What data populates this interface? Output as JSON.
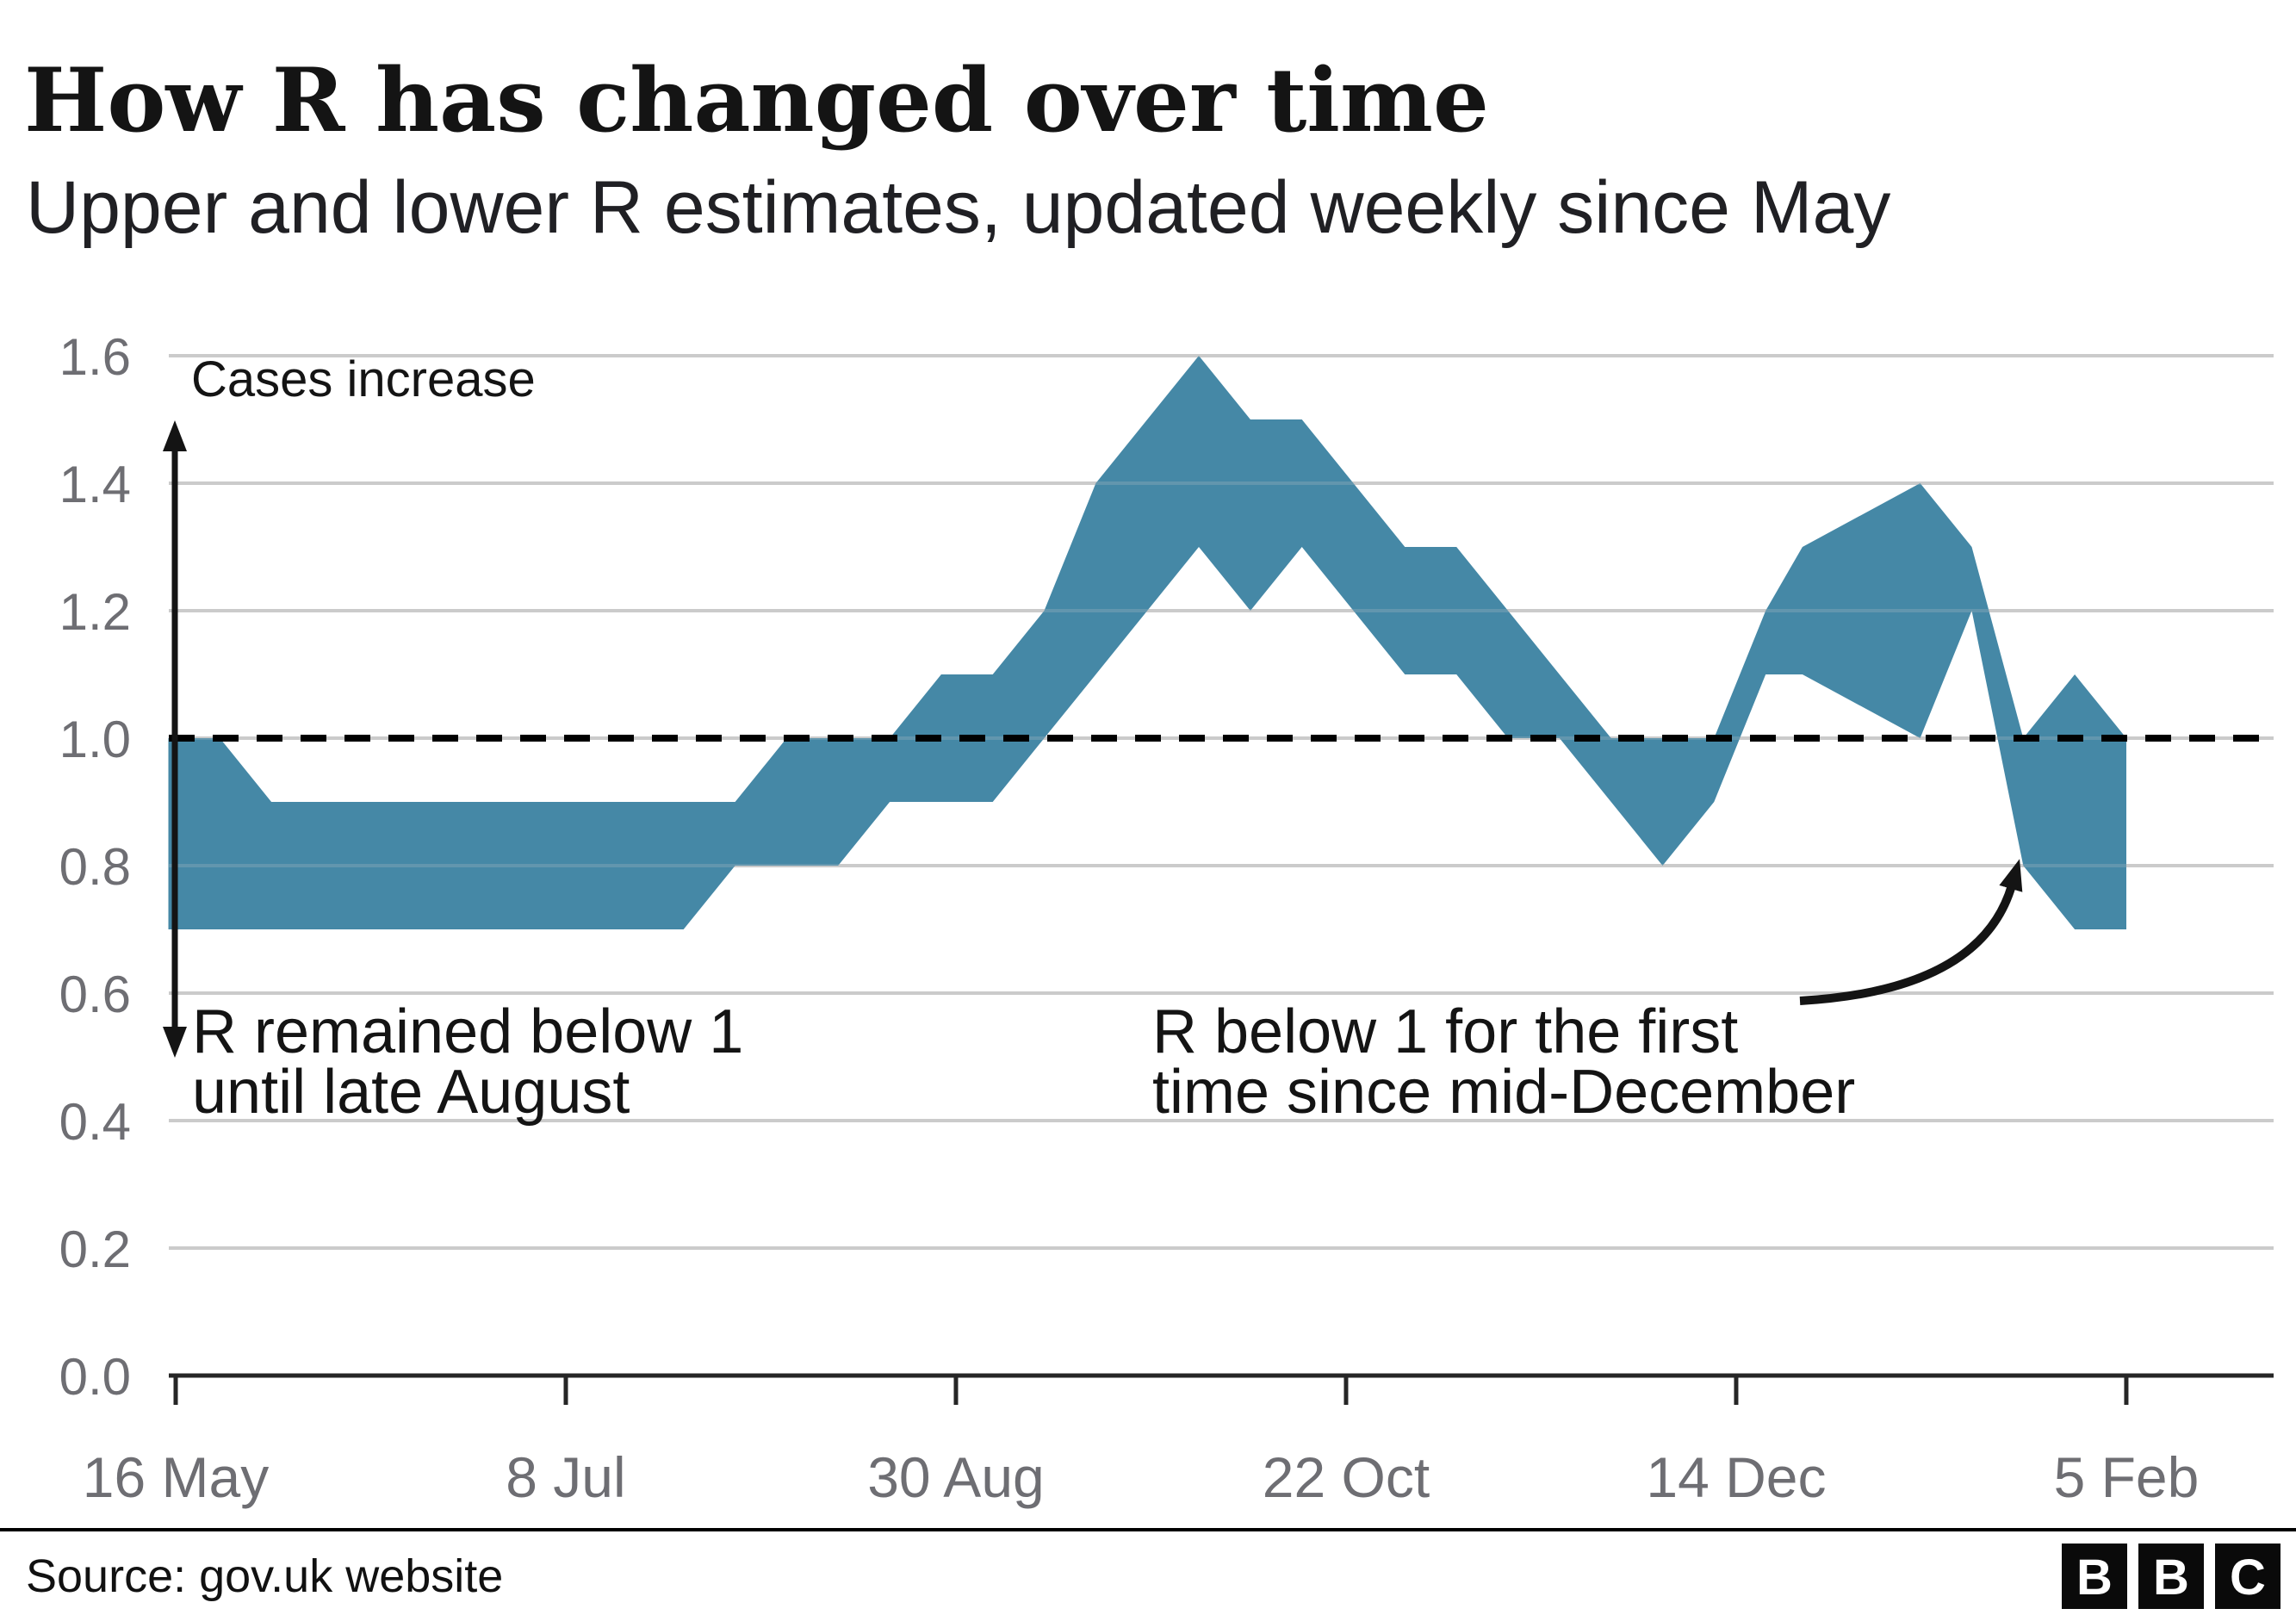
{
  "header": {
    "title": "How R has changed over time",
    "subtitle": "Upper and lower R estimates, updated weekly since May"
  },
  "annotations": {
    "cases_increase": "Cases increase",
    "below1_august_line1": "R remained below 1",
    "below1_august_line2": "until late August",
    "below1_december_line1": "R below 1 for the first",
    "below1_december_line2": "time since mid-December"
  },
  "footer": {
    "source": "Source: gov.uk website",
    "logo_letters": [
      "B",
      "B",
      "C"
    ]
  },
  "colors": {
    "band": "#4588a6",
    "grid": "#cbcbcb",
    "axis": "#262626",
    "muted_text": "#6e6e73",
    "text": "#141414",
    "reference_dash": "#000000"
  },
  "chart_data": {
    "type": "area",
    "band_meaning": "range between lower and upper weekly R estimate",
    "title": "How R has changed over time",
    "subtitle": "Upper and lower R estimates, updated weekly since May",
    "ylim": [
      0.0,
      1.6
    ],
    "y_ticks": [
      0.0,
      0.2,
      0.4,
      0.6,
      0.8,
      1.0,
      1.2,
      1.4,
      1.6
    ],
    "reference_value": 1.0,
    "grid": true,
    "x_ticks": [
      {
        "label": "16 May",
        "day": 0
      },
      {
        "label": "8 Jul",
        "day": 53
      },
      {
        "label": "30 Aug",
        "day": 106
      },
      {
        "label": "22 Oct",
        "day": 159
      },
      {
        "label": "14 Dec",
        "day": 212
      },
      {
        "label": "5 Feb",
        "day": 265
      }
    ],
    "points": [
      {
        "date": "15 May",
        "day": -1,
        "lower": 0.7,
        "upper": 1.0
      },
      {
        "date": "22 May",
        "day": 6,
        "lower": 0.7,
        "upper": 1.0
      },
      {
        "date": "29 May",
        "day": 13,
        "lower": 0.7,
        "upper": 0.9
      },
      {
        "date": "5 Jun",
        "day": 20,
        "lower": 0.7,
        "upper": 0.9
      },
      {
        "date": "12 Jun",
        "day": 27,
        "lower": 0.7,
        "upper": 0.9
      },
      {
        "date": "19 Jun",
        "day": 34,
        "lower": 0.7,
        "upper": 0.9
      },
      {
        "date": "26 Jun",
        "day": 41,
        "lower": 0.7,
        "upper": 0.9
      },
      {
        "date": "3 Jul",
        "day": 48,
        "lower": 0.7,
        "upper": 0.9
      },
      {
        "date": "10 Jul",
        "day": 55,
        "lower": 0.7,
        "upper": 0.9
      },
      {
        "date": "17 Jul",
        "day": 62,
        "lower": 0.7,
        "upper": 0.9
      },
      {
        "date": "24 Jul",
        "day": 69,
        "lower": 0.7,
        "upper": 0.9
      },
      {
        "date": "31 Jul",
        "day": 76,
        "lower": 0.8,
        "upper": 0.9
      },
      {
        "date": "7 Aug",
        "day": 83,
        "lower": 0.8,
        "upper": 1.0
      },
      {
        "date": "14 Aug",
        "day": 90,
        "lower": 0.8,
        "upper": 1.0
      },
      {
        "date": "21 Aug",
        "day": 97,
        "lower": 0.9,
        "upper": 1.0
      },
      {
        "date": "28 Aug",
        "day": 104,
        "lower": 0.9,
        "upper": 1.1
      },
      {
        "date": "4 Sep",
        "day": 111,
        "lower": 0.9,
        "upper": 1.1
      },
      {
        "date": "11 Sep",
        "day": 118,
        "lower": 1.0,
        "upper": 1.2
      },
      {
        "date": "18 Sep",
        "day": 125,
        "lower": 1.1,
        "upper": 1.4
      },
      {
        "date": "25 Sep",
        "day": 132,
        "lower": 1.2,
        "upper": 1.5
      },
      {
        "date": "2 Oct",
        "day": 139,
        "lower": 1.3,
        "upper": 1.6
      },
      {
        "date": "9 Oct",
        "day": 146,
        "lower": 1.2,
        "upper": 1.5
      },
      {
        "date": "16 Oct",
        "day": 153,
        "lower": 1.3,
        "upper": 1.5
      },
      {
        "date": "23 Oct",
        "day": 160,
        "lower": 1.2,
        "upper": 1.4
      },
      {
        "date": "30 Oct",
        "day": 167,
        "lower": 1.1,
        "upper": 1.3
      },
      {
        "date": "6 Nov",
        "day": 174,
        "lower": 1.1,
        "upper": 1.3
      },
      {
        "date": "13 Nov",
        "day": 181,
        "lower": 1.0,
        "upper": 1.2
      },
      {
        "date": "20 Nov",
        "day": 188,
        "lower": 1.0,
        "upper": 1.1
      },
      {
        "date": "27 Nov",
        "day": 195,
        "lower": 0.9,
        "upper": 1.0
      },
      {
        "date": "4 Dec",
        "day": 202,
        "lower": 0.8,
        "upper": 1.0
      },
      {
        "date": "11 Dec",
        "day": 209,
        "lower": 0.9,
        "upper": 1.0
      },
      {
        "date": "18 Dec",
        "day": 216,
        "lower": 1.1,
        "upper": 1.2
      },
      {
        "date": "23 Dec",
        "day": 221,
        "lower": 1.1,
        "upper": 1.3
      },
      {
        "date": "8 Jan",
        "day": 237,
        "lower": 1.0,
        "upper": 1.4
      },
      {
        "date": "15 Jan",
        "day": 244,
        "lower": 1.2,
        "upper": 1.3
      },
      {
        "date": "22 Jan",
        "day": 251,
        "lower": 0.8,
        "upper": 1.0
      },
      {
        "date": "29 Jan",
        "day": 258,
        "lower": 0.7,
        "upper": 1.1
      },
      {
        "date": "5 Feb",
        "day": 265,
        "lower": 0.7,
        "upper": 1.0
      }
    ]
  }
}
